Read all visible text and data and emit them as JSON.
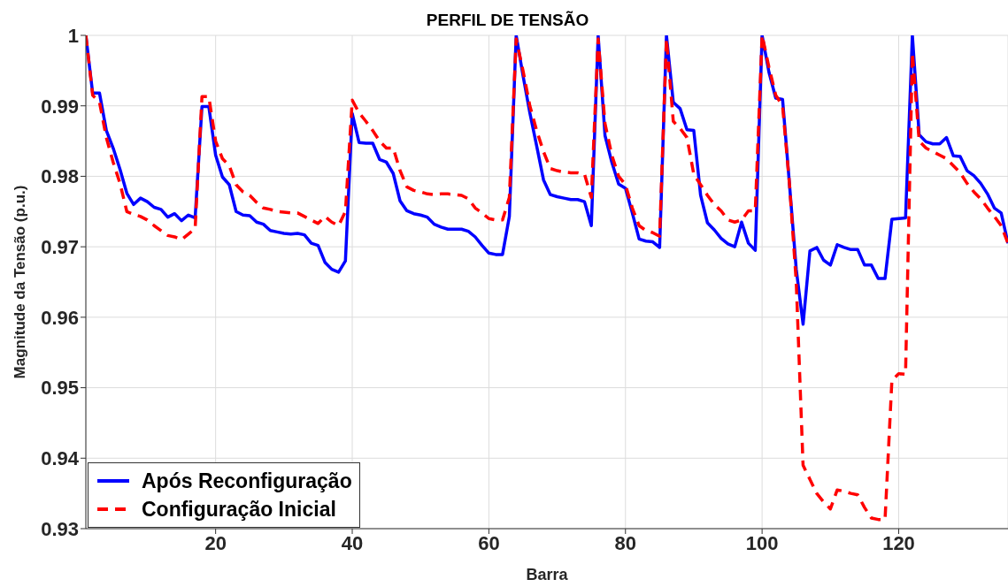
{
  "chart_data": {
    "type": "line",
    "title": "PERFIL DE TENSÃO",
    "xlabel": "Barra",
    "ylabel": "Magnitude da Tensão (p.u.)",
    "x": [
      1,
      2,
      3,
      4,
      5,
      6,
      7,
      8,
      9,
      10,
      11,
      12,
      13,
      14,
      15,
      16,
      17,
      18,
      19,
      20,
      21,
      22,
      23,
      24,
      25,
      26,
      27,
      28,
      29,
      30,
      31,
      32,
      33,
      34,
      35,
      36,
      37,
      38,
      39,
      40,
      41,
      42,
      43,
      44,
      45,
      46,
      47,
      48,
      49,
      50,
      51,
      52,
      53,
      54,
      55,
      56,
      57,
      58,
      59,
      60,
      61,
      62,
      63,
      64,
      65,
      66,
      67,
      68,
      69,
      70,
      71,
      72,
      73,
      74,
      75,
      76,
      77,
      78,
      79,
      80,
      81,
      82,
      83,
      84,
      85,
      86,
      87,
      88,
      89,
      90,
      91,
      92,
      93,
      94,
      95,
      96,
      97,
      98,
      99,
      100,
      101,
      102,
      103,
      104,
      105,
      106,
      107,
      108,
      109,
      110,
      111,
      112,
      113,
      114,
      115,
      116,
      117,
      118,
      119,
      120,
      121,
      122,
      123,
      124,
      125,
      126,
      127,
      128,
      129,
      130,
      131,
      132,
      133,
      134,
      135,
      136
    ],
    "series": [
      {
        "name": "Após Reconfiguração",
        "color": "#0000ff",
        "line_style": "solid",
        "values": [
          1.0,
          0.9918,
          0.9918,
          0.9865,
          0.984,
          0.981,
          0.9776,
          0.976,
          0.9769,
          0.9764,
          0.9756,
          0.9753,
          0.9742,
          0.9747,
          0.9737,
          0.9745,
          0.9741,
          0.9899,
          0.9899,
          0.983,
          0.9799,
          0.9788,
          0.975,
          0.9745,
          0.9744,
          0.9735,
          0.9732,
          0.9723,
          0.9721,
          0.9719,
          0.9718,
          0.9719,
          0.9717,
          0.9705,
          0.9702,
          0.9678,
          0.9668,
          0.9664,
          0.968,
          0.9889,
          0.9848,
          0.9847,
          0.9847,
          0.9824,
          0.982,
          0.9804,
          0.9765,
          0.9751,
          0.9747,
          0.9745,
          0.9742,
          0.9732,
          0.9728,
          0.9725,
          0.9725,
          0.9725,
          0.9722,
          0.9714,
          0.9702,
          0.9691,
          0.9689,
          0.9689,
          0.9743,
          1.0,
          0.9943,
          0.989,
          0.9843,
          0.9795,
          0.9774,
          0.9771,
          0.9769,
          0.9767,
          0.9767,
          0.9764,
          0.973,
          1.0,
          0.9858,
          0.982,
          0.9789,
          0.9783,
          0.9748,
          0.9711,
          0.9708,
          0.9707,
          0.9699,
          1.0,
          0.9905,
          0.9896,
          0.9866,
          0.9865,
          0.9773,
          0.9734,
          0.9724,
          0.9712,
          0.9704,
          0.97,
          0.9735,
          0.9705,
          0.9695,
          1.0,
          0.9948,
          0.9911,
          0.9909,
          0.979,
          0.9668,
          0.959,
          0.9694,
          0.9699,
          0.9681,
          0.9674,
          0.9703,
          0.9699,
          0.9696,
          0.9696,
          0.9674,
          0.9674,
          0.9655,
          0.9655,
          0.9739,
          0.974,
          0.9741,
          1.0,
          0.9859,
          0.9849,
          0.9846,
          0.9846,
          0.9855,
          0.9829,
          0.9828,
          0.9808,
          0.9801,
          0.979,
          0.9775,
          0.9755,
          0.9748,
          0.9705
        ]
      },
      {
        "name": "Configuração Inicial",
        "color": "#ff0000",
        "line_style": "dashed",
        "values": [
          1.0,
          0.9915,
          0.9905,
          0.9855,
          0.982,
          0.979,
          0.975,
          0.9746,
          0.9743,
          0.9738,
          0.973,
          0.9723,
          0.9716,
          0.9714,
          0.971,
          0.9718,
          0.9726,
          0.9913,
          0.9913,
          0.985,
          0.9825,
          0.9815,
          0.9788,
          0.9778,
          0.9773,
          0.9763,
          0.9755,
          0.9753,
          0.975,
          0.9749,
          0.9748,
          0.9748,
          0.9743,
          0.9738,
          0.9733,
          0.9743,
          0.9735,
          0.973,
          0.975,
          0.9908,
          0.989,
          0.9878,
          0.9865,
          0.985,
          0.984,
          0.984,
          0.9808,
          0.9785,
          0.978,
          0.9778,
          0.9775,
          0.9774,
          0.9775,
          0.9775,
          0.9774,
          0.9773,
          0.9768,
          0.9755,
          0.9748,
          0.974,
          0.9738,
          0.9738,
          0.977,
          0.9995,
          0.995,
          0.99,
          0.9865,
          0.9835,
          0.9811,
          0.9808,
          0.9806,
          0.9805,
          0.9805,
          0.9803,
          0.977,
          0.9995,
          0.9875,
          0.983,
          0.98,
          0.9788,
          0.9755,
          0.973,
          0.9723,
          0.972,
          0.9715,
          0.9995,
          0.9878,
          0.9868,
          0.9855,
          0.9803,
          0.9788,
          0.9773,
          0.976,
          0.9751,
          0.9738,
          0.9735,
          0.9738,
          0.9751,
          0.9751,
          1.0,
          0.9955,
          0.9915,
          0.99,
          0.979,
          0.965,
          0.939,
          0.937,
          0.935,
          0.9338,
          0.9328,
          0.9355,
          0.9353,
          0.935,
          0.9348,
          0.933,
          0.9315,
          0.9313,
          0.9313,
          0.951,
          0.952,
          0.9519,
          0.9975,
          0.985,
          0.984,
          0.9835,
          0.983,
          0.9825,
          0.9815,
          0.9805,
          0.979,
          0.9778,
          0.9768,
          0.9755,
          0.9743,
          0.973,
          0.9705
        ]
      }
    ],
    "xlim": [
      1,
      136
    ],
    "xticks": [
      20,
      40,
      60,
      80,
      100,
      120
    ],
    "ylim": [
      0.93,
      1
    ],
    "yticks": [
      0.93,
      0.94,
      0.95,
      0.96,
      0.97,
      0.98,
      0.99,
      1
    ],
    "grid": true,
    "legend": "bottom left",
    "marker": "none"
  }
}
